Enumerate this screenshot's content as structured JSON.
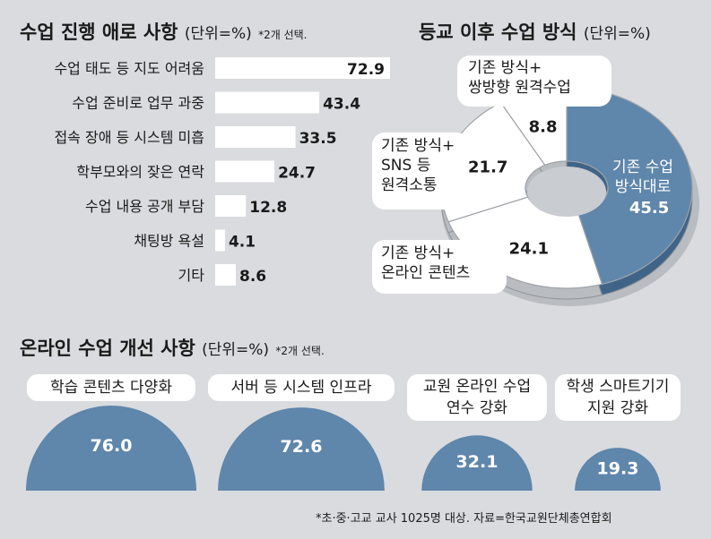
{
  "chart_data": [
    {
      "type": "bar",
      "title": "수업 진행 애로 사항",
      "unit": "(단위=%)",
      "note": "*2개 선택.",
      "categories": [
        "수업 태도 등 지도 어려움",
        "수업 준비로 업무 과중",
        "접속 장애 등 시스템 미흡",
        "학부모와의 잦은 연락",
        "수업 내용 공개 부담",
        "채팅방 욕설",
        "기타"
      ],
      "values": [
        72.9,
        43.4,
        33.5,
        24.7,
        12.8,
        4.1,
        8.6
      ],
      "value_labels": [
        "72.9",
        "43.4",
        "33.5",
        "24.7",
        "12.8",
        "4.1",
        "8.6"
      ],
      "xlim": [
        0,
        80
      ]
    },
    {
      "type": "pie",
      "title": "등교 이후 수업 방식",
      "unit": "(단위=%)",
      "categories": [
        "기존 수업 방식대로",
        "기존 방식+ 온라인 콘텐츠",
        "기존 방식+ SNS 등 원격소통",
        "기존 방식+ 쌍방향 원격수업"
      ],
      "values": [
        45.5,
        24.1,
        21.7,
        8.8
      ],
      "value_labels": [
        "45.5",
        "24.1",
        "21.7",
        "8.8"
      ]
    },
    {
      "type": "bar",
      "title": "온라인 수업 개선 사항",
      "unit": "(단위=%)",
      "note": "*2개 선택.",
      "categories": [
        "학습 콘텐츠 다양화",
        "서버 등 시스템 인프라",
        "교원 온라인 수업 연수 강화",
        "학생 스마트기기 지원 강화"
      ],
      "values": [
        76.0,
        72.6,
        32.1,
        19.3
      ],
      "value_labels": [
        "76.0",
        "72.6",
        "32.1",
        "19.3"
      ]
    }
  ],
  "labels": {
    "pie_inside": [
      "기존 수업",
      "방식대로"
    ],
    "pie_callout_online": [
      "기존 방식+",
      "온라인 콘텐츠"
    ],
    "pie_callout_sns": [
      "기존 방식+",
      "SNS 등",
      "원격소통"
    ],
    "pie_callout_twoway": [
      "기존 방식+",
      "쌍방향 원격수업"
    ],
    "dome_pills": [
      [
        "학습 콘텐츠 다양화"
      ],
      [
        "서버 등 시스템 인프라"
      ],
      [
        "교원 온라인 수업",
        "연수 강화"
      ],
      [
        "학생 스마트기기",
        "지원 강화"
      ]
    ]
  },
  "source": "*초·중·고교 교사 1025명 대상. 자료=한국교원단체총연합회",
  "colors": {
    "background": "#d9dbde",
    "accent": "#5f86ab",
    "bar": "#ffffff",
    "text": "#1a1a1a"
  }
}
